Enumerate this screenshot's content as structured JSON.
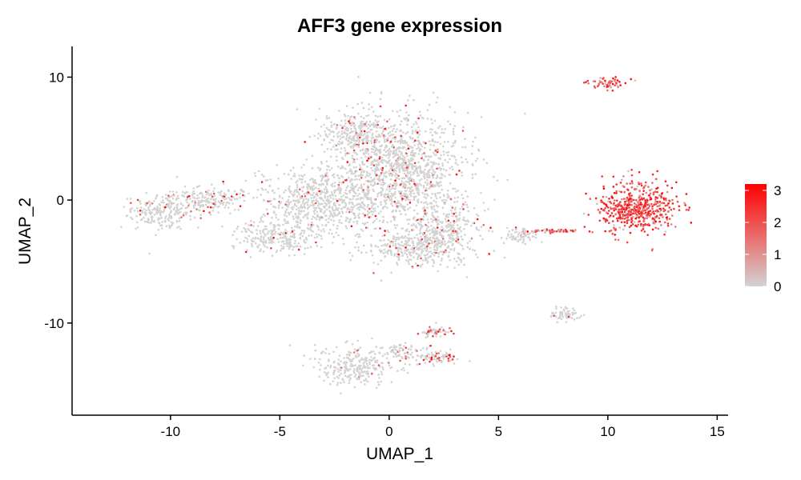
{
  "chart_data": {
    "type": "scatter",
    "title": "AFF3 gene expression",
    "xlabel": "UMAP_1",
    "ylabel": "UMAP_2",
    "xlim": [
      -14.5,
      15.5
    ],
    "ylim": [
      -17.5,
      12.5
    ],
    "x_ticks": [
      -10,
      -5,
      0,
      5,
      10,
      15
    ],
    "y_ticks": [
      -10,
      0,
      10
    ],
    "grid": false,
    "legend": {
      "position": "right",
      "low_color": "#d3d3d3",
      "high_color": "#ff0000",
      "ticks": [
        0,
        1,
        2,
        3
      ],
      "range": [
        0,
        3.2
      ]
    },
    "clusters": [
      {
        "cx": 0.5,
        "cy": 2.5,
        "rx": 3.0,
        "ry": 4.5,
        "expr": 0.08
      },
      {
        "cx": -1.5,
        "cy": 5.5,
        "rx": 1.6,
        "ry": 1.8,
        "expr": 0.05
      },
      {
        "cx": -3.0,
        "cy": 0.0,
        "rx": 3.0,
        "ry": 2.5,
        "expr": 0.05
      },
      {
        "cx": 2.5,
        "cy": -2.5,
        "rx": 1.6,
        "ry": 2.4,
        "expr": 0.06
      },
      {
        "cx": 1.0,
        "cy": -4.0,
        "rx": 2.0,
        "ry": 1.5,
        "expr": 0.05
      },
      {
        "cx": -5.0,
        "cy": -3.0,
        "rx": 2.0,
        "ry": 1.4,
        "expr": 0.04
      },
      {
        "cx": -10.5,
        "cy": -1.0,
        "rx": 1.6,
        "ry": 1.4,
        "expr": 0.04
      },
      {
        "cx": -8.5,
        "cy": 0.0,
        "rx": 1.8,
        "ry": 1.2,
        "expr": 0.12
      },
      {
        "cx": -1.5,
        "cy": -13.5,
        "rx": 1.8,
        "ry": 1.6,
        "expr": 0.04
      },
      {
        "cx": 0.8,
        "cy": -12.5,
        "rx": 1.6,
        "ry": 0.7,
        "expr": 0.1
      },
      {
        "cx": 2.2,
        "cy": -12.8,
        "rx": 0.9,
        "ry": 0.6,
        "expr": 0.45
      },
      {
        "cx": 2.0,
        "cy": -10.7,
        "rx": 0.8,
        "ry": 0.4,
        "expr": 0.4
      },
      {
        "cx": 11.5,
        "cy": -0.5,
        "rx": 1.7,
        "ry": 2.3,
        "expr": 0.92
      },
      {
        "cx": 11.0,
        "cy": -1.0,
        "rx": 1.5,
        "ry": 1.3,
        "expr": 0.95
      },
      {
        "cx": 10.0,
        "cy": 9.5,
        "rx": 0.9,
        "ry": 0.5,
        "expr": 0.8
      },
      {
        "cx": 6.0,
        "cy": -3.0,
        "rx": 1.0,
        "ry": 0.6,
        "expr": 0.06
      },
      {
        "cx": 7.5,
        "cy": -2.5,
        "rx": 1.5,
        "ry": 0.15,
        "expr": 0.7
      },
      {
        "cx": 8.0,
        "cy": -9.3,
        "rx": 0.7,
        "ry": 0.5,
        "expr": 0.03
      }
    ]
  }
}
